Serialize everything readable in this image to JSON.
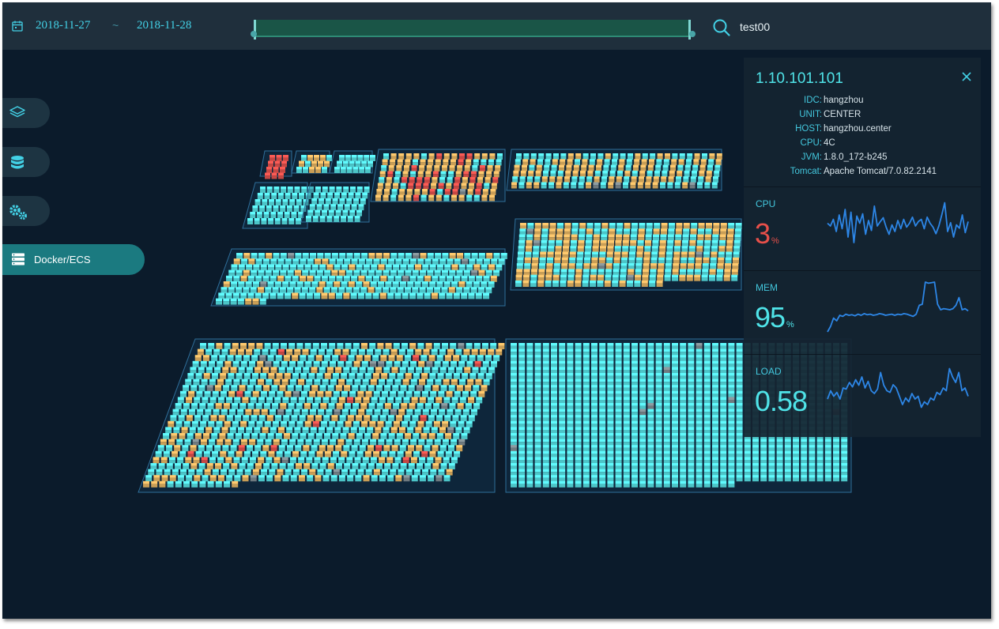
{
  "header": {
    "start_date": "2018-11-27",
    "separator": "~",
    "end_date": "2018-11-28",
    "search_value": "test00",
    "icons": [
      "calendar-icon",
      "search-icon"
    ]
  },
  "sidebar": {
    "items": [
      {
        "icon": "layers-icon"
      },
      {
        "icon": "database-icon"
      },
      {
        "icon": "gears-icon"
      },
      {
        "icon": "server-icon",
        "label": "Docker/ECS",
        "active": true
      }
    ]
  },
  "detail": {
    "ip": "1.10.101.101",
    "info": [
      {
        "key": "IDC:",
        "value": "hangzhou"
      },
      {
        "key": "UNIT:",
        "value": "CENTER"
      },
      {
        "key": "HOST:",
        "value": "hangzhou.center"
      },
      {
        "key": "CPU:",
        "value": "4C"
      },
      {
        "key": "JVM:",
        "value": "1.8.0_172-b245"
      },
      {
        "key": "Tomcat:",
        "value": "Apache Tomcat/7.0.82.2141"
      }
    ],
    "metrics": [
      {
        "label": "CPU",
        "value": "3",
        "unit": "%",
        "color": "#e8504a",
        "series": [
          55,
          50,
          62,
          40,
          70,
          45,
          80,
          30,
          75,
          20,
          68,
          55,
          72,
          35,
          60,
          42,
          86,
          50,
          58,
          65,
          48,
          35,
          52,
          40,
          60,
          45,
          62,
          48,
          55,
          66,
          50,
          58,
          62,
          45,
          66,
          55,
          48,
          36,
          50,
          70,
          92,
          40,
          56,
          30,
          52,
          46,
          70,
          38,
          58
        ]
      },
      {
        "label": "MEM",
        "value": "95",
        "unit": "%",
        "color": "#4fe3e8",
        "series": [
          10,
          20,
          35,
          30,
          40,
          38,
          42,
          40,
          41,
          39,
          42,
          40,
          43,
          41,
          42,
          40,
          41,
          43,
          42,
          40,
          41,
          42,
          40,
          42,
          41,
          43,
          42,
          40,
          38,
          42,
          58,
          60,
          100,
          98,
          99,
          100,
          60,
          50,
          52,
          51,
          50,
          52,
          58,
          72,
          50,
          52,
          48
        ]
      },
      {
        "label": "LOAD",
        "value": "0.58",
        "unit": "",
        "color": "#4fe3e8",
        "series": [
          40,
          55,
          45,
          52,
          40,
          60,
          58,
          70,
          62,
          75,
          65,
          80,
          60,
          72,
          55,
          50,
          58,
          88,
          65,
          55,
          52,
          66,
          60,
          45,
          30,
          42,
          35,
          50,
          40,
          45,
          25,
          35,
          30,
          42,
          38,
          52,
          48,
          60,
          55,
          95,
          80,
          70,
          88,
          55,
          60,
          45
        ]
      }
    ]
  },
  "colors": {
    "healthy": "#56dfe2",
    "warning": "#e4b462",
    "critical": "#e0514c",
    "offline": "#7e8b90",
    "background": "#0b1b2b",
    "accent": "#43d1e6"
  }
}
